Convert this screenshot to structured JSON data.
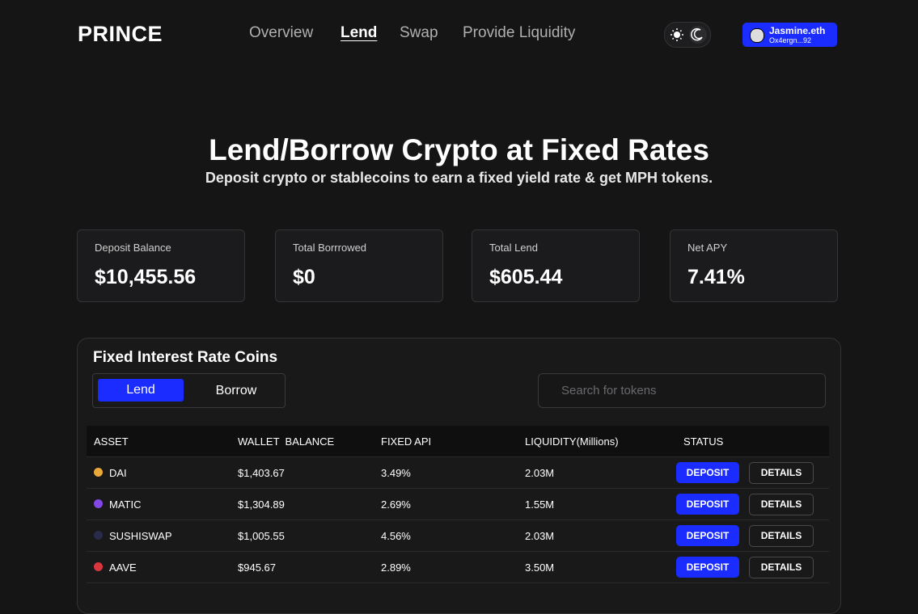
{
  "header": {
    "logo": "PRINCE",
    "nav": [
      "Overview",
      "Lend",
      "Swap",
      "Provide Liquidity"
    ],
    "active_nav": 1,
    "account": {
      "name": "Jasmine.eth",
      "address": "Ox4ergn...92"
    }
  },
  "hero": {
    "title": "Lend/Borrow Crypto at Fixed Rates",
    "subtitle": "Deposit crypto or stablecoins to earn a fixed yield rate & get MPH tokens."
  },
  "stats": [
    {
      "label": "Deposit Balance",
      "value": "$10,455.56"
    },
    {
      "label": "Total Borrrowed",
      "value": "$0"
    },
    {
      "label": "Total Lend",
      "value": "$605.44"
    },
    {
      "label": "Net APY",
      "value": "7.41%"
    }
  ],
  "panel": {
    "title": "Fixed Interest Rate Coins",
    "tabs": [
      "Lend",
      "Borrow"
    ],
    "search_placeholder": "Search for tokens",
    "columns": [
      "ASSET",
      "WALLET  BALANCE",
      "FIXED API",
      "LIQUIDITY(Millions)",
      "STATUS"
    ],
    "rows": [
      [
        "DAI",
        "$1,403.67",
        "3.49%",
        "2.03M"
      ],
      [
        "MATIC",
        "$1,304.89",
        "2.69%",
        "1.55M"
      ],
      [
        "SUSHISWAP",
        "$1,005.55",
        "4.56%",
        "2.03M"
      ],
      [
        "AAVE",
        "$945.67",
        "2.89%",
        "3.50M"
      ]
    ],
    "actions": [
      "DEPOSIT",
      "DETAILS"
    ]
  }
}
